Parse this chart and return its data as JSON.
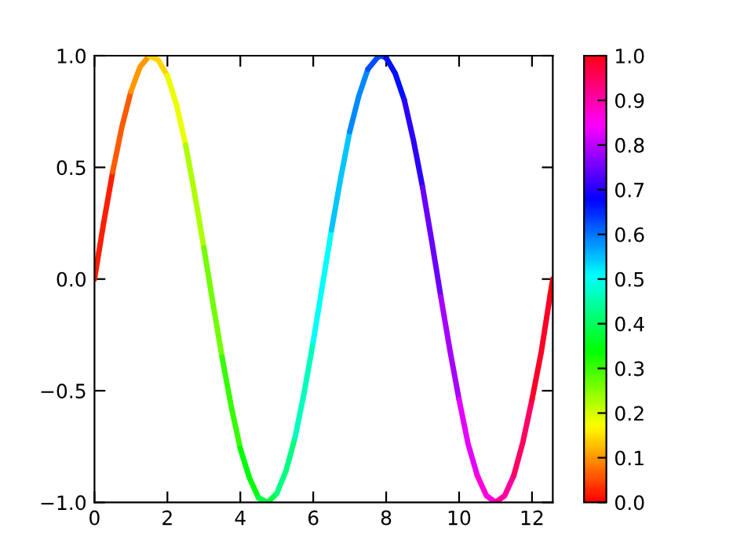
{
  "chart_data": {
    "type": "line",
    "series": [
      {
        "color": "#ff1e00",
        "x": [
          0,
          0.25,
          0.5
        ],
        "values": [
          0,
          0.25,
          0.48
        ]
      },
      {
        "color": "#ff5b00",
        "x": [
          0.5,
          0.75,
          1.0
        ],
        "values": [
          0.48,
          0.68,
          0.84
        ]
      },
      {
        "color": "#ff9800",
        "x": [
          1.0,
          1.25,
          1.5
        ],
        "values": [
          0.84,
          0.95,
          1.0
        ]
      },
      {
        "color": "#ffd500",
        "x": [
          1.5,
          1.75,
          2.0
        ],
        "values": [
          1.0,
          0.98,
          0.91
        ]
      },
      {
        "color": "#ecff00",
        "x": [
          2.0,
          2.25,
          2.5
        ],
        "values": [
          0.91,
          0.78,
          0.6
        ]
      },
      {
        "color": "#afff00",
        "x": [
          2.5,
          2.75,
          3.0
        ],
        "values": [
          0.6,
          0.38,
          0.14
        ]
      },
      {
        "color": "#72ff00",
        "x": [
          3.0,
          3.25,
          3.5
        ],
        "values": [
          0.14,
          -0.11,
          -0.35
        ]
      },
      {
        "color": "#35ff00",
        "x": [
          3.5,
          3.75,
          4.0
        ],
        "values": [
          -0.35,
          -0.57,
          -0.76
        ]
      },
      {
        "color": "#00ff07",
        "x": [
          4.0,
          4.25,
          4.5
        ],
        "values": [
          -0.76,
          -0.89,
          -0.98
        ]
      },
      {
        "color": "#00ff44",
        "x": [
          4.5,
          4.75,
          5.0
        ],
        "values": [
          -0.98,
          -1.0,
          -0.96
        ]
      },
      {
        "color": "#00ff81",
        "x": [
          5.0,
          5.25,
          5.5
        ],
        "values": [
          -0.96,
          -0.86,
          -0.71
        ]
      },
      {
        "color": "#00ffbe",
        "x": [
          5.5,
          5.75,
          6.0
        ],
        "values": [
          -0.71,
          -0.51,
          -0.28
        ]
      },
      {
        "color": "#00fffb",
        "x": [
          6.0,
          6.25,
          6.5
        ],
        "values": [
          -0.28,
          -0.03,
          0.22
        ]
      },
      {
        "color": "#00c6ff",
        "x": [
          6.5,
          6.75,
          7.0
        ],
        "values": [
          0.22,
          0.45,
          0.66
        ]
      },
      {
        "color": "#0089ff",
        "x": [
          7.0,
          7.25,
          7.5
        ],
        "values": [
          0.66,
          0.82,
          0.94
        ]
      },
      {
        "color": "#004cff",
        "x": [
          7.5,
          7.75,
          7.85,
          8.0
        ],
        "values": [
          0.94,
          0.99,
          1.0,
          0.99
        ]
      },
      {
        "color": "#000fff",
        "x": [
          8.0,
          8.25,
          8.5
        ],
        "values": [
          0.99,
          0.92,
          0.8
        ]
      },
      {
        "color": "#2d00ff",
        "x": [
          8.5,
          8.75,
          9.0
        ],
        "values": [
          0.8,
          0.62,
          0.41
        ]
      },
      {
        "color": "#6a00ff",
        "x": [
          9.0,
          9.25,
          9.5
        ],
        "values": [
          0.41,
          0.17,
          -0.08
        ]
      },
      {
        "color": "#a700ff",
        "x": [
          9.5,
          9.75,
          10.0
        ],
        "values": [
          -0.08,
          -0.32,
          -0.54
        ]
      },
      {
        "color": "#e400ff",
        "x": [
          10.0,
          10.25,
          10.5
        ],
        "values": [
          -0.54,
          -0.74,
          -0.88
        ]
      },
      {
        "color": "#ff00dd",
        "x": [
          10.5,
          10.75,
          11.0
        ],
        "values": [
          -0.88,
          -0.97,
          -1.0
        ]
      },
      {
        "color": "#ff00a0",
        "x": [
          11.0,
          11.25,
          11.5
        ],
        "values": [
          -1.0,
          -0.97,
          -0.88
        ]
      },
      {
        "color": "#ff0063",
        "x": [
          11.5,
          11.75,
          12.0
        ],
        "values": [
          -0.88,
          -0.73,
          -0.54
        ]
      },
      {
        "color": "#ff0026",
        "x": [
          12.0,
          12.25,
          12.5
        ],
        "values": [
          -0.54,
          -0.33,
          -0.07
        ]
      },
      {
        "color": "#ff0004",
        "x": [
          12.5,
          12.57
        ],
        "values": [
          -0.07,
          0.0
        ]
      }
    ],
    "clim": [
      0.0,
      1.0
    ],
    "cticks": [
      {
        "value": 0.0,
        "label": "0.0"
      },
      {
        "value": 0.1,
        "label": "0.1"
      },
      {
        "value": 0.2,
        "label": "0.2"
      },
      {
        "value": 0.3,
        "label": "0.3"
      },
      {
        "value": 0.4,
        "label": "0.4"
      },
      {
        "value": 0.5,
        "label": "0.5"
      },
      {
        "value": 0.6,
        "label": "0.6"
      },
      {
        "value": 0.7,
        "label": "0.7"
      },
      {
        "value": 0.8,
        "label": "0.8"
      },
      {
        "value": 0.9,
        "label": "0.9"
      },
      {
        "value": 1.0,
        "label": "1.0"
      }
    ],
    "xlim": [
      0,
      12.57
    ],
    "xticks": [
      0,
      2,
      4,
      6,
      8,
      10,
      12
    ],
    "ylim": [
      -1.0,
      1.0
    ],
    "yticks": [
      {
        "value": -1.0,
        "label": "−1.0"
      },
      {
        "value": -0.5,
        "label": "−0.5"
      },
      {
        "value": 0.0,
        "label": "0.0"
      },
      {
        "value": 0.5,
        "label": "0.5"
      },
      {
        "value": 1.0,
        "label": "1.0"
      }
    ],
    "grid": false,
    "legend": false
  }
}
